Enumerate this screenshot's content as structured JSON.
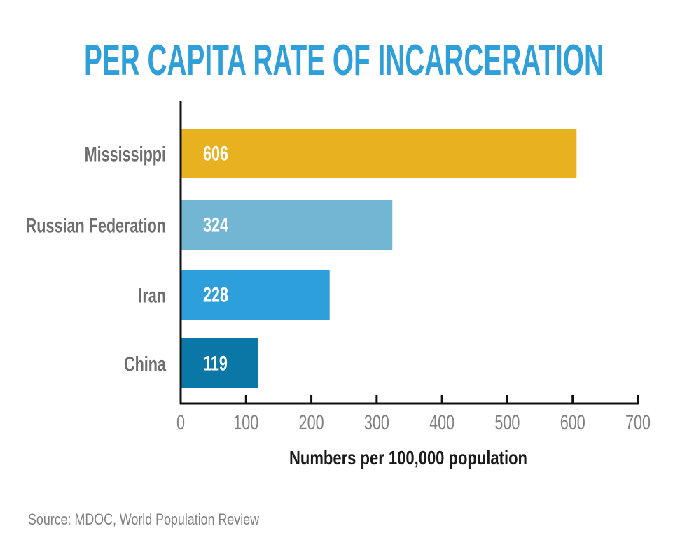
{
  "chart_data": {
    "type": "bar",
    "orientation": "horizontal",
    "title": "PER CAPITA RATE OF INCARCERATION",
    "categories": [
      "Mississippi",
      "Russian Federation",
      "Iran",
      "China"
    ],
    "values": [
      606,
      324,
      228,
      119
    ],
    "data_labels": [
      "606",
      "324",
      "228",
      "119"
    ],
    "colors": [
      "#E8B120",
      "#72B6D3",
      "#2D9FDA",
      "#0B77A6"
    ],
    "xlabel": "Numbers per 100,000 population",
    "ylabel": "",
    "xlim": [
      0,
      700
    ],
    "x_ticks": [
      "0",
      "100",
      "200",
      "300",
      "400",
      "500",
      "600",
      "700"
    ],
    "grid": false,
    "legend": "none",
    "source": "Source: MDOC, World Population Review"
  },
  "colors": {
    "title": "#2E9FD9",
    "axis_text": "#808080",
    "axis_line": "#111111"
  }
}
